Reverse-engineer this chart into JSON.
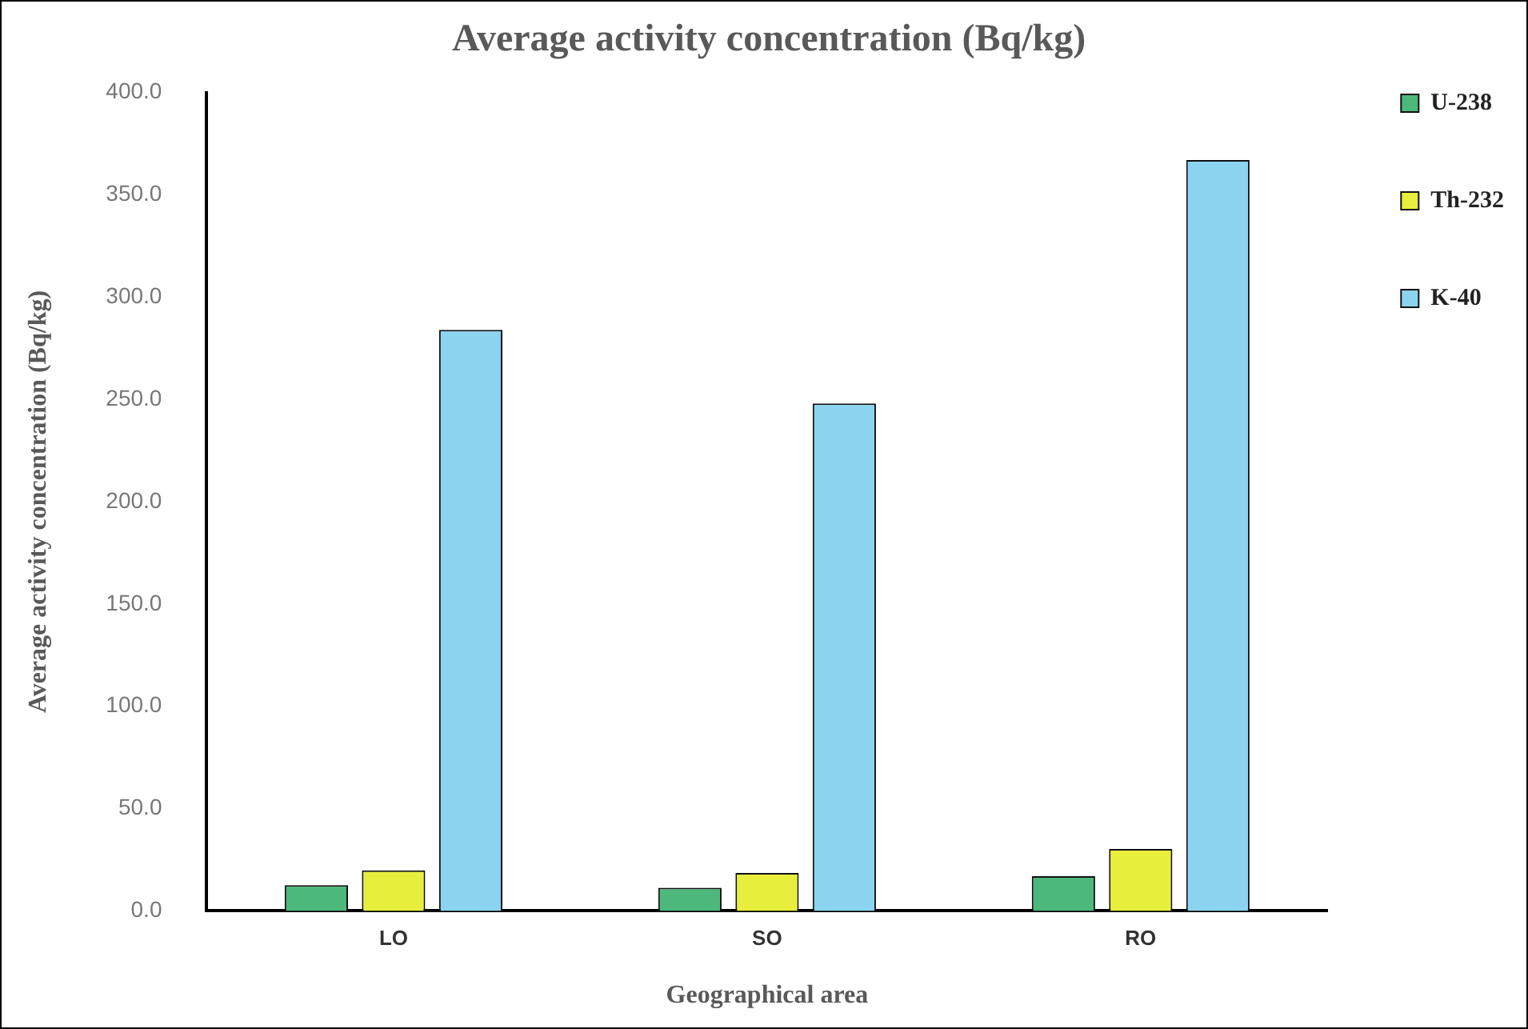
{
  "chart_data": {
    "type": "bar",
    "title": "Average activity concentration (Bq/kg)",
    "xlabel": "Geographical area",
    "ylabel": "Average activity concentration (Bq/kg)",
    "categories": [
      "LO",
      "SO",
      "RO"
    ],
    "series": [
      {
        "name": "U-238",
        "color": "#4cb87c",
        "values": [
          12.6,
          11.3,
          17
        ]
      },
      {
        "name": "Th-232",
        "color": "#e8ee3c",
        "values": [
          19.8,
          18.5,
          30.3
        ]
      },
      {
        "name": "K-40",
        "color": "#8ad4f0",
        "values": [
          284,
          248,
          367
        ]
      }
    ],
    "ylim": [
      0,
      400
    ],
    "yticks": [
      {
        "value": 0,
        "label": "0.0"
      },
      {
        "value": 50,
        "label": "50.0"
      },
      {
        "value": 100,
        "label": "100.0"
      },
      {
        "value": 150,
        "label": "150.0"
      },
      {
        "value": 200,
        "label": "200.0"
      },
      {
        "value": 250,
        "label": "250.0"
      },
      {
        "value": 300,
        "label": "300.0"
      },
      {
        "value": 350,
        "label": "350.0"
      },
      {
        "value": 400,
        "label": "400.0"
      }
    ],
    "grid": false,
    "legend": "right"
  }
}
